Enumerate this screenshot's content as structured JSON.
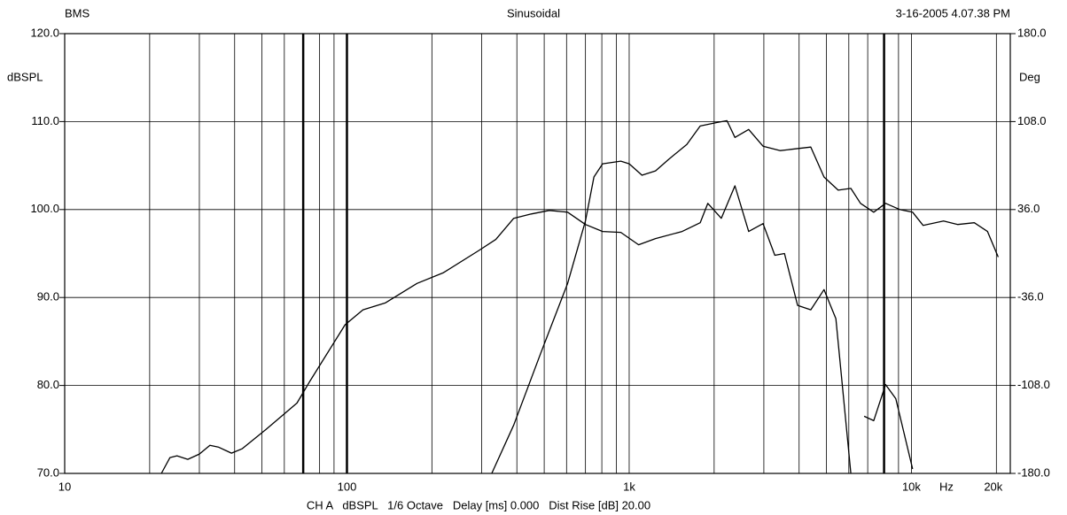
{
  "chart_data": {
    "type": "line",
    "header_left": "BMS",
    "title": "Sinusoidal",
    "header_right": "3-16-2005 4.07.38 PM",
    "footer": "CH A   dBSPL   1/6 Octave   Delay [ms] 0.000   Dist Rise [dB] 20.00",
    "ylabel": "dBSPL",
    "y2label": "Deg",
    "xlabel": "Hz",
    "log_x": true,
    "grid": true,
    "xlim": [
      10,
      22400
    ],
    "xticks": [
      10,
      100,
      {
        "value": 1000,
        "label": "1k"
      },
      {
        "value": 10000,
        "label": "10k"
      },
      {
        "value": 20000,
        "label": "20k"
      }
    ],
    "xgrid": [
      20,
      30,
      40,
      50,
      60,
      80,
      90,
      200,
      300,
      400,
      500,
      600,
      700,
      800,
      900,
      2000,
      3000,
      4000,
      5000,
      6000,
      7000,
      9000
    ],
    "markers": [
      70,
      100,
      8000
    ],
    "ylim": [
      70,
      120
    ],
    "yticks": [
      {
        "value": 70,
        "label": "70.0"
      },
      {
        "value": 80,
        "label": "80.0"
      },
      {
        "value": 90,
        "label": "90.0"
      },
      {
        "value": 100,
        "label": "100.0"
      },
      {
        "value": 110,
        "label": "110.0"
      },
      {
        "value": 120,
        "label": "120.0"
      }
    ],
    "y2lim": [
      -180,
      180
    ],
    "y2ticks": [
      {
        "value": -180,
        "label": "-180.0"
      },
      {
        "value": -108,
        "label": "-108.0"
      },
      {
        "value": -36,
        "label": "-36.0"
      },
      {
        "value": 36,
        "label": "36.0"
      },
      {
        "value": 108,
        "label": "108.0"
      },
      {
        "value": 180,
        "label": "180.0"
      }
    ],
    "series": [
      {
        "color": "#000000",
        "x": [
          22,
          23.6,
          25,
          27.3,
          30,
          32.7,
          35,
          39,
          42.5,
          51.7,
          66.5,
          74,
          98.5,
          114,
          137,
          177,
          219,
          292,
          337,
          390,
          450,
          521,
          605,
          700,
          805,
          934,
          1080,
          1240,
          1540,
          1785,
          1900,
          2120,
          2370,
          2650,
          2980,
          3280,
          3550,
          3950,
          4400,
          4900,
          5400,
          6100,
          6400,
          6800,
          7350,
          8100,
          8800,
          10100
        ],
        "values": [
          70,
          71.8,
          72,
          71.6,
          72.2,
          73.2,
          73,
          72.3,
          72.8,
          75,
          78,
          80.5,
          86.9,
          88.6,
          89.4,
          91.6,
          92.8,
          95.3,
          96.6,
          99,
          99.5,
          99.9,
          99.7,
          98.3,
          97.5,
          97.4,
          96,
          96.7,
          97.5,
          98.5,
          100.7,
          99,
          102.7,
          97.5,
          98.4,
          94.8,
          95,
          89.1,
          88.6,
          90.9,
          87.6,
          70,
          null,
          76.5,
          76,
          80.1,
          78.5,
          70.5
        ]
      },
      {
        "color": "#000000",
        "x": [
          326,
          390,
          485,
          605,
          700,
          750,
          805,
          934,
          1000,
          1110,
          1240,
          1380,
          1600,
          1785,
          2050,
          2220,
          2370,
          2650,
          2980,
          3430,
          4400,
          4900,
          5500,
          6100,
          6600,
          7350,
          8100,
          9100,
          10100,
          11000,
          13000,
          14600,
          16700,
          18600,
          20300
        ],
        "values": [
          70,
          75.5,
          83.6,
          91.6,
          98.7,
          103.7,
          105.2,
          105.5,
          105.2,
          103.9,
          104.4,
          105.7,
          107.4,
          109.5,
          109.9,
          110.1,
          108.2,
          109.1,
          107.2,
          106.7,
          107.1,
          103.7,
          102.2,
          102.4,
          100.7,
          99.7,
          100.7,
          100,
          99.7,
          98.2,
          98.7,
          98.3,
          98.5,
          97.5,
          94.6
        ]
      }
    ]
  }
}
